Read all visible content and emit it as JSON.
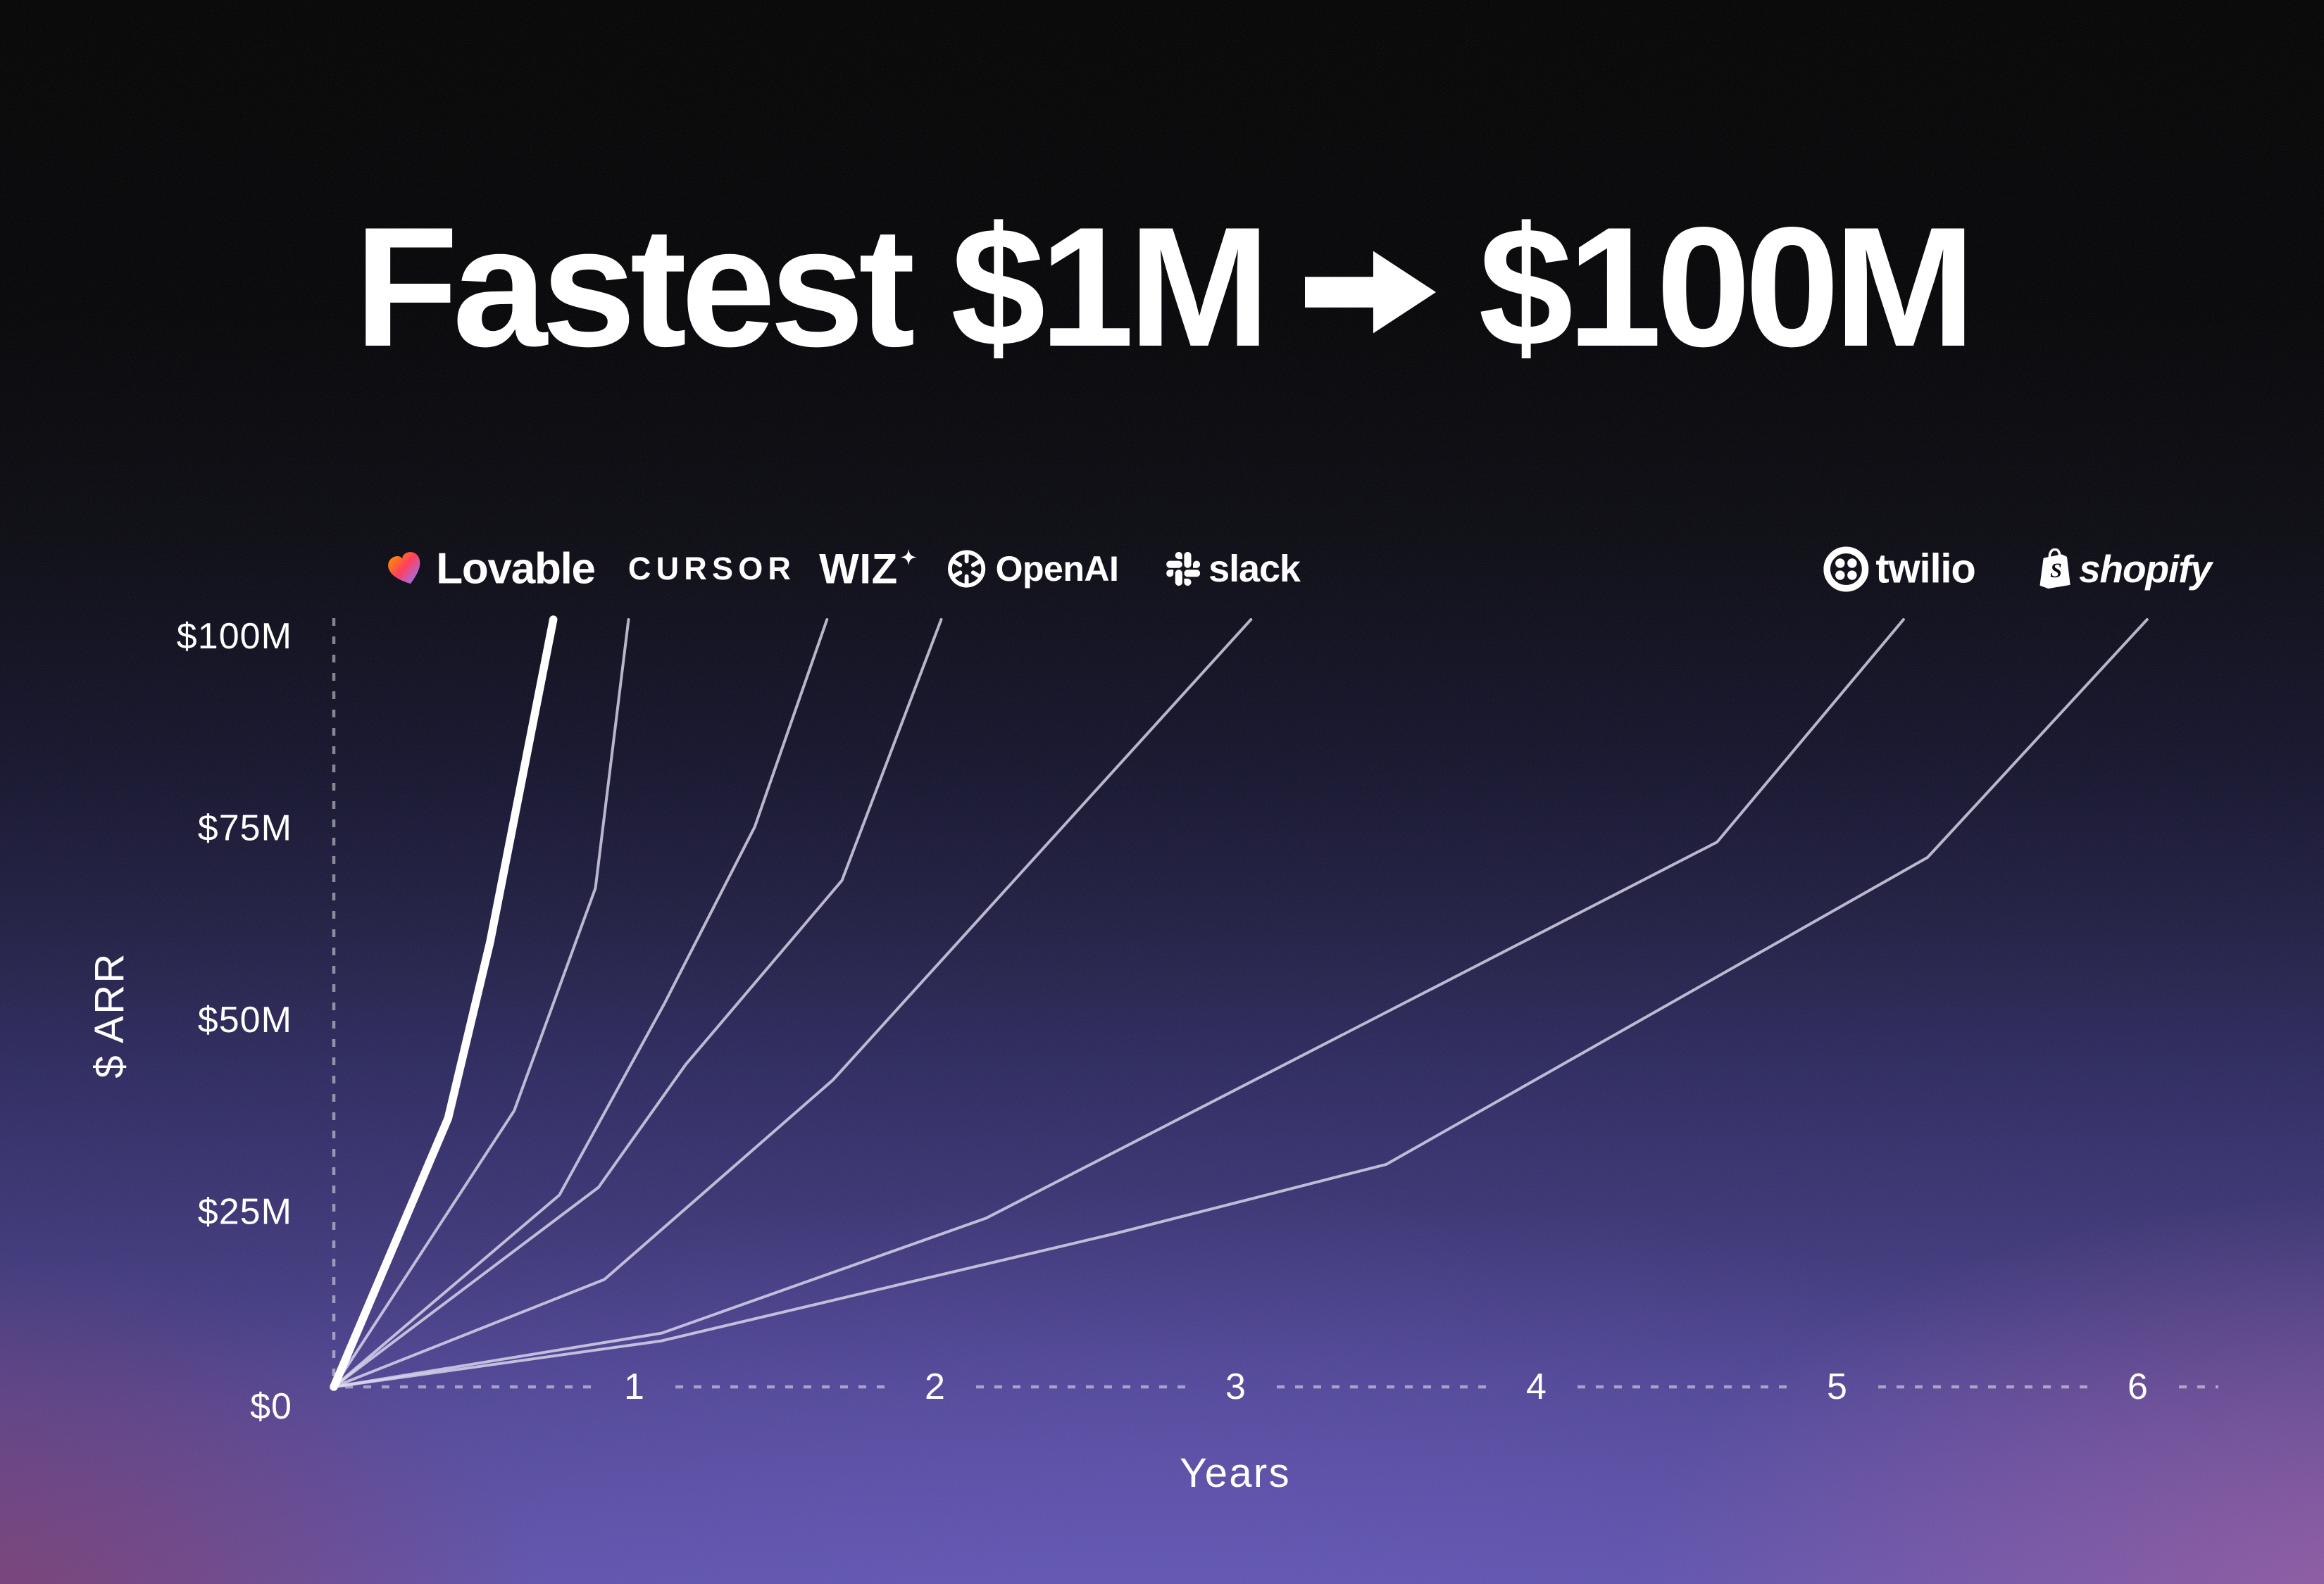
{
  "title": {
    "left": "Fastest $1M",
    "right": "$100M",
    "arrow": "→"
  },
  "logos": [
    {
      "label": "Lovable",
      "icon": "lovable-heart-icon"
    },
    {
      "label": "CURSOR",
      "icon": "none"
    },
    {
      "label": "WIZ",
      "icon": "wiz-sparkle-icon"
    },
    {
      "label": "OpenAI",
      "icon": "openai-knot-icon"
    },
    {
      "label": "slack",
      "icon": "slack-hash-icon"
    },
    {
      "label": "twilio",
      "icon": "twilio-ring-icon"
    },
    {
      "label": "shopify",
      "icon": "shopify-bag-icon"
    }
  ],
  "chart_data": {
    "type": "line",
    "title": "Fastest $1M → $100M",
    "xlabel": "Years",
    "ylabel": "$ ARR",
    "xlim": [
      0,
      6.25
    ],
    "ylim": [
      0,
      100
    ],
    "unit": "ARR in $M",
    "grid": false,
    "axis_style": "dotted",
    "xticks": [
      1,
      2,
      3,
      4,
      5,
      6
    ],
    "yticks": [
      {
        "value": 0,
        "label": "$0"
      },
      {
        "value": 25,
        "label": "$25M"
      },
      {
        "value": 50,
        "label": "$50M"
      },
      {
        "value": 75,
        "label": "$75M"
      },
      {
        "value": 100,
        "label": "$100M"
      }
    ],
    "series": [
      {
        "name": "Lovable",
        "emphasis": true,
        "years_to_100m": 0.73,
        "points": [
          [
            0,
            0
          ],
          [
            0.38,
            35
          ],
          [
            0.52,
            58
          ],
          [
            0.62,
            78
          ],
          [
            0.69,
            92
          ],
          [
            0.73,
            100
          ]
        ]
      },
      {
        "name": "Cursor",
        "emphasis": false,
        "years_to_100m": 0.98,
        "points": [
          [
            0,
            0
          ],
          [
            0.6,
            36
          ],
          [
            0.87,
            65
          ],
          [
            0.98,
            100
          ]
        ]
      },
      {
        "name": "Wiz",
        "emphasis": false,
        "years_to_100m": 1.64,
        "points": [
          [
            0,
            0
          ],
          [
            0.75,
            25
          ],
          [
            1.1,
            50
          ],
          [
            1.4,
            73
          ],
          [
            1.64,
            100
          ]
        ]
      },
      {
        "name": "OpenAI",
        "emphasis": false,
        "years_to_100m": 2.02,
        "points": [
          [
            0,
            0
          ],
          [
            0.88,
            26
          ],
          [
            1.17,
            42
          ],
          [
            1.69,
            66
          ],
          [
            2.02,
            100
          ]
        ]
      },
      {
        "name": "Slack",
        "emphasis": false,
        "years_to_100m": 3.05,
        "points": [
          [
            0,
            0
          ],
          [
            0.9,
            14
          ],
          [
            1.66,
            40
          ],
          [
            3.05,
            100
          ]
        ]
      },
      {
        "name": "Twilio",
        "emphasis": false,
        "years_to_100m": 5.22,
        "points": [
          [
            0,
            0
          ],
          [
            1.09,
            7
          ],
          [
            2.17,
            22
          ],
          [
            4.6,
            71
          ],
          [
            5.22,
            100
          ]
        ]
      },
      {
        "name": "Shopify",
        "emphasis": false,
        "years_to_100m": 6.03,
        "points": [
          [
            0,
            0
          ],
          [
            1.09,
            6
          ],
          [
            2.6,
            20
          ],
          [
            3.5,
            29
          ],
          [
            5.3,
            69
          ],
          [
            6.03,
            100
          ]
        ]
      }
    ]
  },
  "colors": {
    "background_top": "#000000",
    "background_bottom": "#5a4fa5",
    "corner_glow_left": "#853660",
    "corner_glow_right": "#b05fa0",
    "accent_line": "#ffffff",
    "secondary_line": "#dcd9ee",
    "lovable_gradient": [
      "#ff8a00",
      "#ff3f5f",
      "#8f7bff"
    ]
  }
}
